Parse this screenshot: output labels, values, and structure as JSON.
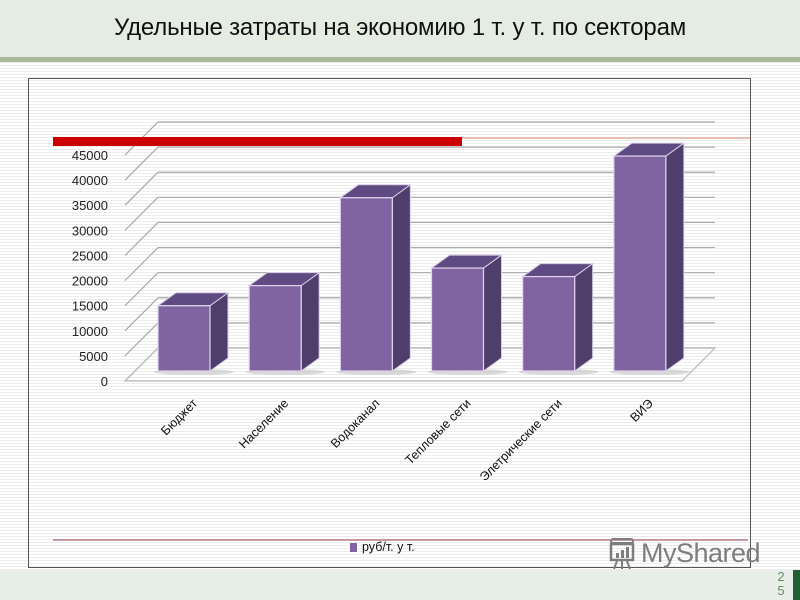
{
  "header": {
    "title": "Удельные затраты на экономию 1 т. у т. по секторам"
  },
  "colors": {
    "bar_front": "#8064a2",
    "bar_side": "#4f3e6b",
    "bar_top": "#5f4b82",
    "highlight_red": "#cc0000",
    "header_bg": "#e5ede3",
    "header_stripe": "#a9b89a",
    "footer_accent": "#1f5f34"
  },
  "legend": {
    "label": "руб/т. у т."
  },
  "watermark": {
    "text": "MyShared"
  },
  "footer": {
    "page_digit_1": "2",
    "page_digit_2": "5"
  },
  "chart_data": {
    "type": "bar",
    "style": "3d-column",
    "title": "Удельные затраты на экономию 1 т. у т. по секторам",
    "xlabel": "",
    "ylabel": "",
    "categories": [
      "Бюджет",
      "Население",
      "Водоканал",
      "Тепловые сети",
      "Элетрические сети",
      "ВИЭ"
    ],
    "series": [
      {
        "name": "руб/т. у т.",
        "values": [
          13000,
          17000,
          34500,
          20500,
          18800,
          42800
        ]
      }
    ],
    "yticks": [
      "0",
      "5000",
      "10000",
      "15000",
      "20000",
      "25000",
      "30000",
      "35000",
      "40000",
      "45000"
    ],
    "ylim": [
      0,
      45000
    ],
    "grid": true,
    "legend_position": "bottom"
  }
}
